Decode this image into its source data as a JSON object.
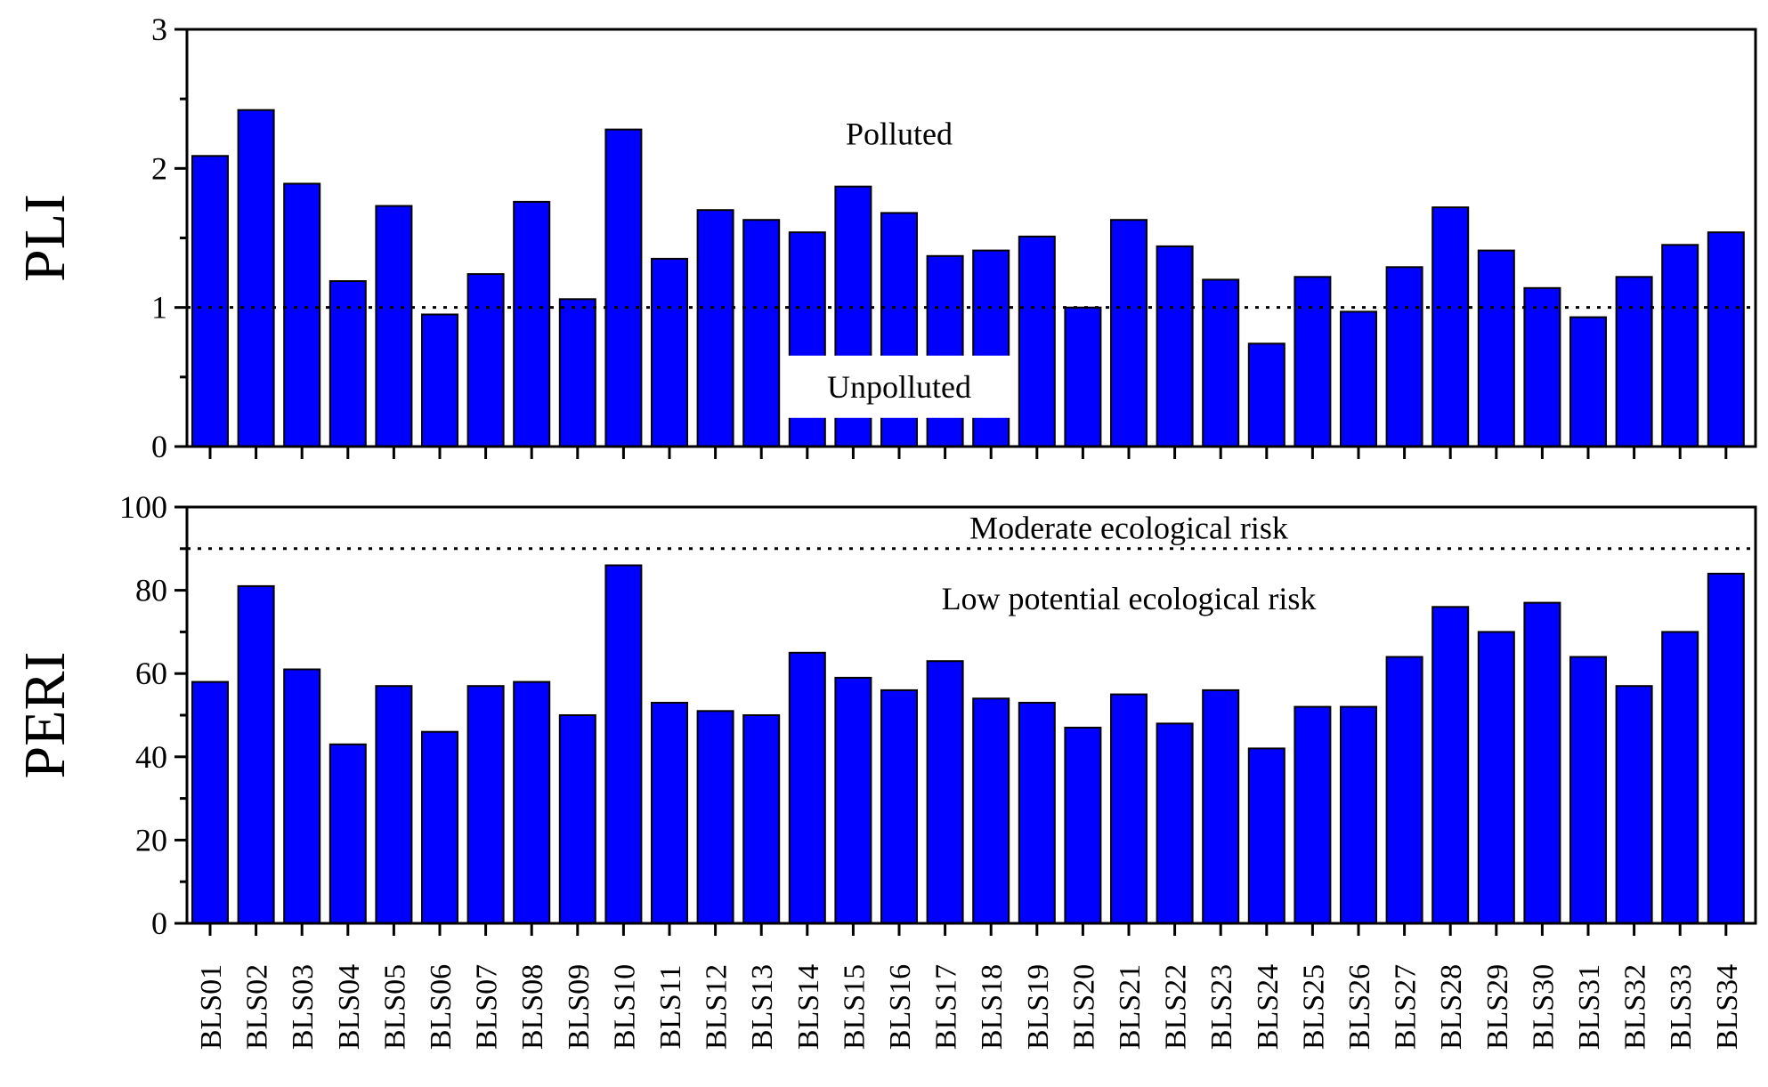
{
  "colors": {
    "bar": "#0000ff",
    "axis": "#000000",
    "background": "#ffffff"
  },
  "chart_data": [
    {
      "type": "bar",
      "id": "pli",
      "ylabel": "PLI",
      "xlabel": "",
      "ylim": [
        0,
        3
      ],
      "yticks": [
        0,
        1,
        2,
        3
      ],
      "ytick_labels": [
        "0",
        "1",
        "2",
        "3"
      ],
      "grid": false,
      "categories": [
        "BLS01",
        "BLS02",
        "BLS03",
        "BLS04",
        "BLS05",
        "BLS06",
        "BLS07",
        "BLS08",
        "BLS09",
        "BLS10",
        "BLS11",
        "BLS12",
        "BLS13",
        "BLS14",
        "BLS15",
        "BLS16",
        "BLS17",
        "BLS18",
        "BLS19",
        "BLS20",
        "BLS21",
        "BLS22",
        "BLS23",
        "BLS24",
        "BLS25",
        "BLS26",
        "BLS27",
        "BLS28",
        "BLS29",
        "BLS30",
        "BLS31",
        "BLS32",
        "BLS33",
        "BLS34"
      ],
      "values": [
        2.09,
        2.42,
        1.89,
        1.19,
        1.73,
        0.95,
        1.24,
        1.76,
        1.06,
        2.28,
        1.35,
        1.7,
        1.63,
        1.54,
        1.87,
        1.68,
        1.37,
        1.41,
        1.51,
        1.0,
        1.63,
        1.44,
        1.2,
        0.74,
        1.22,
        0.97,
        1.29,
        1.72,
        1.41,
        1.14,
        0.93,
        1.22,
        1.45,
        1.54
      ],
      "reference_line": {
        "value": 1,
        "style": "dotted"
      },
      "annotations": [
        {
          "text": "Polluted",
          "x_category": "BLS16",
          "y": 2.25
        },
        {
          "text": "Unpolluted",
          "x_category": "BLS16",
          "y": 0.43,
          "boxed": true
        }
      ]
    },
    {
      "type": "bar",
      "id": "peri",
      "ylabel": "PERI",
      "xlabel": "",
      "ylim": [
        0,
        100
      ],
      "yticks": [
        0,
        20,
        40,
        60,
        80,
        100
      ],
      "ytick_labels": [
        "0",
        "20",
        "40",
        "60",
        "80",
        "100"
      ],
      "grid": false,
      "categories": [
        "BLS01",
        "BLS02",
        "BLS03",
        "BLS04",
        "BLS05",
        "BLS06",
        "BLS07",
        "BLS08",
        "BLS09",
        "BLS10",
        "BLS11",
        "BLS12",
        "BLS13",
        "BLS14",
        "BLS15",
        "BLS16",
        "BLS17",
        "BLS18",
        "BLS19",
        "BLS20",
        "BLS21",
        "BLS22",
        "BLS23",
        "BLS24",
        "BLS25",
        "BLS26",
        "BLS27",
        "BLS28",
        "BLS29",
        "BLS30",
        "BLS31",
        "BLS32",
        "BLS33",
        "BLS34"
      ],
      "values": [
        58,
        81,
        61,
        43,
        57,
        46,
        57,
        58,
        50,
        86,
        53,
        51,
        50,
        65,
        59,
        56,
        63,
        54,
        53,
        47,
        55,
        48,
        56,
        42,
        52,
        52,
        64,
        76,
        70,
        77,
        64,
        57,
        70,
        84
      ],
      "reference_line": {
        "value": 90,
        "style": "dotted"
      },
      "annotations": [
        {
          "text": "Moderate ecological risk",
          "x_category": "BLS21",
          "y": 95
        },
        {
          "text": "Low potential ecological risk",
          "x_category": "BLS21",
          "y": 78
        }
      ]
    }
  ]
}
